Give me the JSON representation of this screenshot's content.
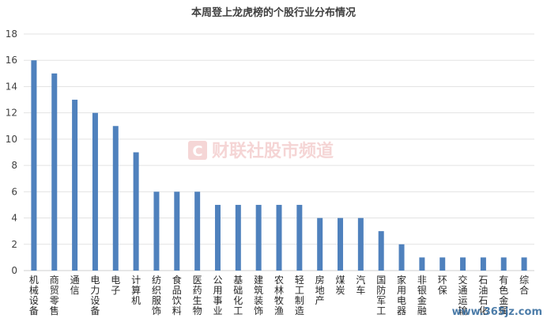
{
  "chart_data": {
    "type": "bar",
    "title": "本周登上龙虎榜的个股行业分布情况",
    "categories": [
      "机械设备",
      "商贸零售",
      "通信",
      "电力设备",
      "电子",
      "计算机",
      "纺织服饰",
      "食品饮料",
      "医药生物",
      "公用事业",
      "基础化工",
      "建筑装饰",
      "农林牧渔",
      "轻工制造",
      "房地产",
      "煤炭",
      "汽车",
      "国防军工",
      "家用电器",
      "非银金融",
      "环保",
      "交通运输",
      "石油石化",
      "有色金属",
      "综合"
    ],
    "values": [
      16,
      15,
      13,
      12,
      11,
      9,
      6,
      6,
      6,
      5,
      5,
      5,
      5,
      5,
      4,
      4,
      4,
      3,
      2,
      1,
      1,
      1,
      1,
      1,
      1
    ],
    "ylim": [
      0,
      18
    ],
    "yticks": [
      0,
      2,
      4,
      6,
      8,
      10,
      12,
      14,
      16,
      18
    ],
    "grid": true,
    "bar_color": "#4F81BD",
    "xlabel": "",
    "ylabel": ""
  },
  "watermark": {
    "text": "财联社股市频道",
    "logo": "C",
    "color": "#e9a3a3"
  },
  "site_watermark": {
    "text": "www.365jz.com"
  }
}
